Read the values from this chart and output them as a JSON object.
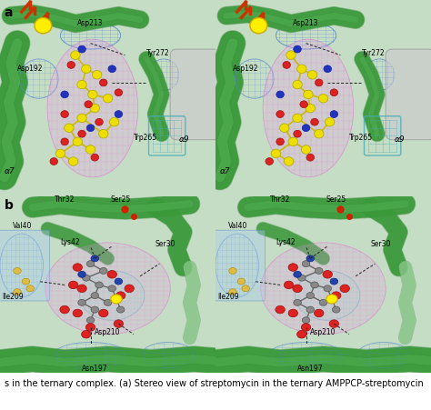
{
  "figure_width": 4.74,
  "figure_height": 4.51,
  "dpi": 100,
  "background_color": "#ffffff",
  "panel_a_label": "a",
  "panel_b_label": "b",
  "caption_text": "s in the ternary complex. (a) Stereo view of streptomycin in the ternary AMPPCP-streptomycin",
  "label_fontsize": 10,
  "caption_fontsize": 7.0,
  "panel_bg_a": "#b8d4b8",
  "panel_bg_b": "#b8d4b8",
  "green_ribbon": "#3a9a3a",
  "green_ribbon_dark": "#2a7a2a",
  "green_ribbon_light": "#60c060",
  "green_ribbon_pale": "#8fcc8f",
  "pink_mesh": "#dd77cc",
  "blue_mesh": "#5588cc",
  "cyan_mesh": "#44aabb",
  "yellow_atom": "#eedd00",
  "red_atom": "#dd2222",
  "blue_atom": "#2233bb",
  "gray_atom": "#888888",
  "label_color": "#000000",
  "label_fontsize_small": 5.5,
  "dashed_color": "#222222"
}
